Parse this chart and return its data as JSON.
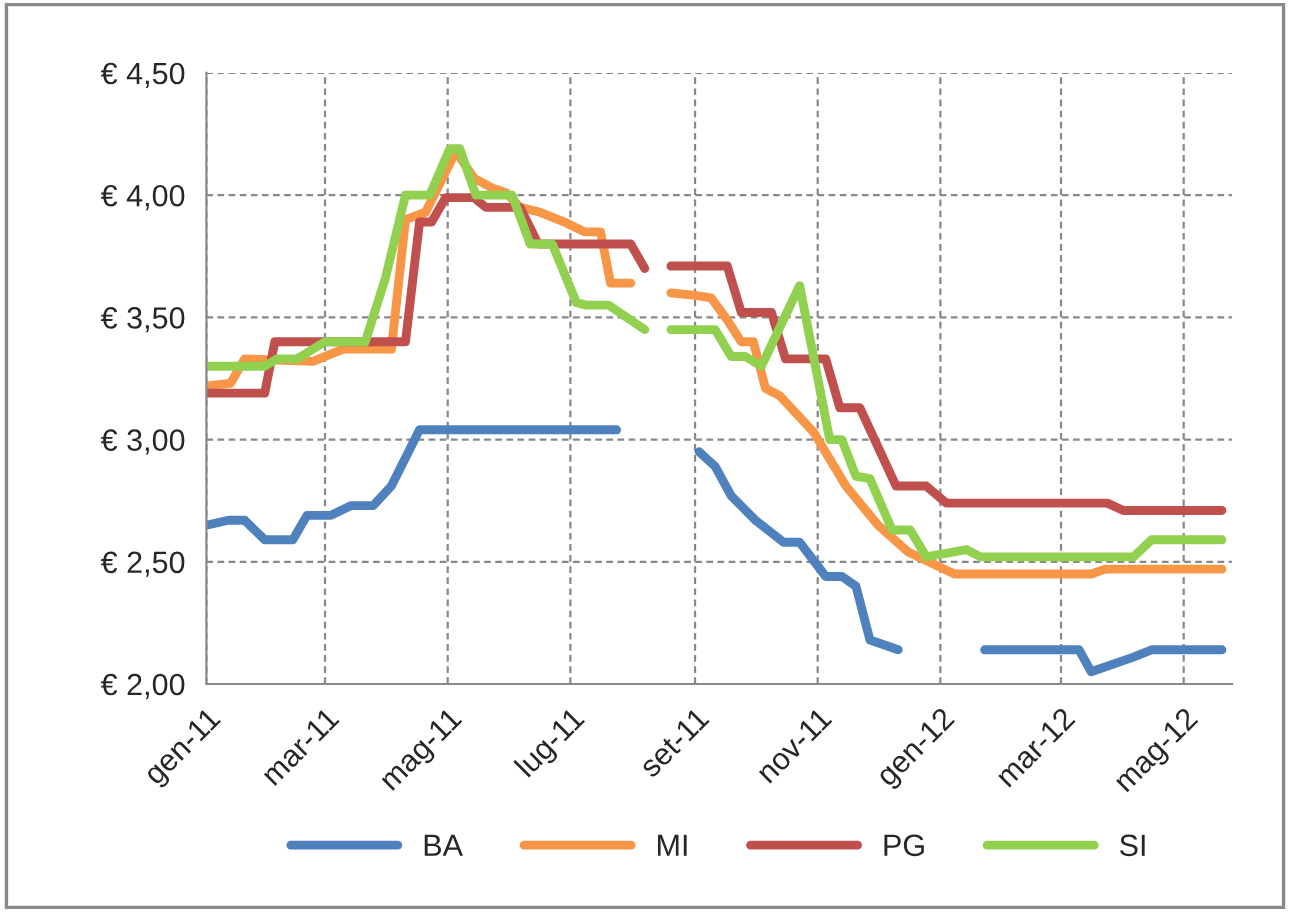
{
  "chart_data": {
    "type": "line",
    "xlim": [
      "2011-01-01",
      "2012-05-25"
    ],
    "xticks": [
      {
        "value": "2011-01-01",
        "label": "gen-11"
      },
      {
        "value": "2011-03-01",
        "label": "mar-11"
      },
      {
        "value": "2011-05-01",
        "label": "mag-11"
      },
      {
        "value": "2011-07-01",
        "label": "lug-11"
      },
      {
        "value": "2011-09-01",
        "label": "set-11"
      },
      {
        "value": "2011-11-01",
        "label": "nov-11"
      },
      {
        "value": "2012-01-01",
        "label": "gen-12"
      },
      {
        "value": "2012-03-01",
        "label": "mar-12"
      },
      {
        "value": "2012-05-01",
        "label": "mag-12"
      }
    ],
    "ylim": [
      2,
      4.5
    ],
    "yticks": [
      {
        "value": 2,
        "label": "€ 2,00"
      },
      {
        "value": 2.5,
        "label": "€ 2,50"
      },
      {
        "value": 3,
        "label": "€ 3,00"
      },
      {
        "value": 3.5,
        "label": "€ 3,50"
      },
      {
        "value": 4,
        "label": "€ 4,00"
      },
      {
        "value": 4.5,
        "label": "€ 4,50"
      }
    ],
    "grid": true,
    "legend": "bottom",
    "marker": "none",
    "line_style": "solid",
    "series": [
      {
        "name": "BA",
        "color": "#4f81bd",
        "x": [
          "2011-01-01",
          "2011-01-12",
          "2011-01-20",
          "2011-01-30",
          "2011-02-13",
          "2011-02-20",
          "2011-03-04",
          "2011-03-14",
          "2011-03-25",
          "2011-04-03",
          "2011-04-17",
          "2011-07-24",
          "2011-08-15",
          "2011-09-03",
          "2011-09-11",
          "2011-09-19",
          "2011-10-01",
          "2011-10-15",
          "2011-10-23",
          "2011-11-05",
          "2011-11-13",
          "2011-11-20",
          "2011-11-27",
          "2011-12-11",
          "2011-12-31",
          "2012-01-23",
          "2012-03-10",
          "2012-03-16",
          "2012-04-06",
          "2012-04-15",
          "2012-05-20"
        ],
        "values": [
          2.65,
          2.67,
          2.67,
          2.59,
          2.59,
          2.69,
          2.69,
          2.73,
          2.73,
          2.81,
          3.04,
          3.04,
          null,
          2.95,
          2.89,
          2.77,
          2.67,
          2.58,
          2.58,
          2.44,
          2.44,
          2.4,
          2.18,
          2.14,
          null,
          2.14,
          2.14,
          2.05,
          2.11,
          2.14,
          2.14
        ]
      },
      {
        "name": "MI",
        "color": "#f79646",
        "x": [
          "2011-01-01",
          "2011-01-13",
          "2011-01-20",
          "2011-02-23",
          "2011-03-10",
          "2011-04-03",
          "2011-04-10",
          "2011-04-20",
          "2011-05-05",
          "2011-05-14",
          "2011-05-23",
          "2011-05-30",
          "2011-06-06",
          "2011-06-16",
          "2011-06-28",
          "2011-07-08",
          "2011-07-16",
          "2011-07-21",
          "2011-07-31",
          "2011-08-10",
          "2011-08-20",
          "2011-09-01",
          "2011-09-09",
          "2011-09-17",
          "2011-09-24",
          "2011-09-30",
          "2011-10-06",
          "2011-10-13",
          "2011-10-30",
          "2011-11-15",
          "2011-12-01",
          "2011-12-16",
          "2012-01-08",
          "2012-03-16",
          "2012-03-23",
          "2012-05-20"
        ],
        "values": [
          3.22,
          3.23,
          3.33,
          3.32,
          3.37,
          3.37,
          3.9,
          3.93,
          4.18,
          4.07,
          4.03,
          4.01,
          3.95,
          3.93,
          3.89,
          3.85,
          3.85,
          3.64,
          3.64,
          null,
          3.6,
          3.59,
          3.58,
          3.49,
          3.4,
          3.4,
          3.21,
          3.18,
          3.03,
          2.81,
          2.65,
          2.54,
          2.45,
          2.45,
          2.47,
          2.47
        ]
      },
      {
        "name": "PG",
        "color": "#c0504d",
        "x": [
          "2011-01-01",
          "2011-01-30",
          "2011-02-04",
          "2011-04-10",
          "2011-04-17",
          "2011-04-23",
          "2011-04-30",
          "2011-05-14",
          "2011-05-20",
          "2011-06-06",
          "2011-06-15",
          "2011-07-31",
          "2011-08-07",
          "2011-08-13",
          "2011-08-20",
          "2011-09-17",
          "2011-09-24",
          "2011-10-09",
          "2011-10-16",
          "2011-11-05",
          "2011-11-12",
          "2011-11-22",
          "2011-12-10",
          "2011-12-25",
          "2012-01-04",
          "2012-03-24",
          "2012-04-01",
          "2012-05-20"
        ],
        "values": [
          3.19,
          3.19,
          3.4,
          3.4,
          3.89,
          3.89,
          3.99,
          3.99,
          3.95,
          3.95,
          3.8,
          3.8,
          3.7,
          null,
          3.71,
          3.71,
          3.52,
          3.52,
          3.33,
          3.33,
          3.13,
          3.13,
          2.81,
          2.81,
          2.74,
          2.74,
          2.71,
          2.71
        ]
      },
      {
        "name": "SI",
        "color": "#92d050",
        "x": [
          "2011-01-01",
          "2011-01-30",
          "2011-02-05",
          "2011-02-15",
          "2011-03-01",
          "2011-03-21",
          "2011-03-31",
          "2011-04-10",
          "2011-04-22",
          "2011-05-02",
          "2011-05-07",
          "2011-05-15",
          "2011-06-02",
          "2011-06-11",
          "2011-06-22",
          "2011-07-04",
          "2011-07-09",
          "2011-07-20",
          "2011-08-07",
          "2011-08-13",
          "2011-08-20",
          "2011-09-11",
          "2011-09-19",
          "2011-09-26",
          "2011-10-04",
          "2011-10-23",
          "2011-11-07",
          "2011-11-13",
          "2011-11-20",
          "2011-11-27",
          "2011-12-08",
          "2011-12-17",
          "2011-12-25",
          "2012-01-14",
          "2012-01-21",
          "2012-04-06",
          "2012-04-15",
          "2012-05-20"
        ],
        "values": [
          3.3,
          3.3,
          3.33,
          3.33,
          3.4,
          3.4,
          3.66,
          4.0,
          4.0,
          4.19,
          4.19,
          4.0,
          4.0,
          3.8,
          3.8,
          3.56,
          3.55,
          3.55,
          3.45,
          null,
          3.45,
          3.45,
          3.34,
          3.34,
          3.3,
          3.63,
          3.0,
          3.0,
          2.85,
          2.84,
          2.63,
          2.63,
          2.52,
          2.55,
          2.52,
          2.52,
          2.59,
          2.59
        ]
      }
    ]
  }
}
